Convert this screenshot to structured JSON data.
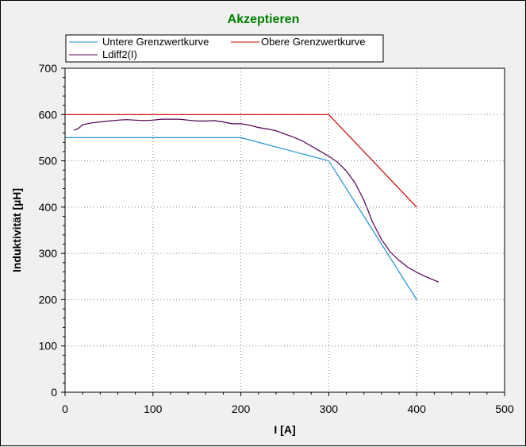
{
  "chart_data": {
    "type": "line",
    "title": "Akzeptieren",
    "title_color": "#008000",
    "xlabel": "I [A]",
    "ylabel": "Induktivität [µH]",
    "xlim": [
      0,
      500
    ],
    "ylim": [
      0,
      700
    ],
    "xticks": [
      0,
      100,
      200,
      300,
      400,
      500
    ],
    "yticks": [
      0,
      100,
      200,
      300,
      400,
      500,
      600,
      700
    ],
    "grid": true,
    "legend_position": "top",
    "series": [
      {
        "name": "Untere Grenzwertkurve",
        "color": "#1e90d8",
        "x": [
          0,
          200,
          300,
          400
        ],
        "y": [
          550,
          550,
          500,
          200
        ]
      },
      {
        "name": "Obere Grenzwertkurve",
        "color": "#c80000",
        "x": [
          0,
          300,
          400
        ],
        "y": [
          600,
          600,
          400
        ]
      },
      {
        "name": "Ldiff2(I)",
        "color": "#500050",
        "x": [
          10,
          15,
          20,
          30,
          40,
          50,
          60,
          70,
          80,
          90,
          100,
          110,
          120,
          130,
          140,
          150,
          160,
          170,
          180,
          190,
          200,
          210,
          220,
          230,
          240,
          250,
          260,
          270,
          280,
          290,
          300,
          310,
          320,
          330,
          340,
          350,
          360,
          370,
          380,
          390,
          400,
          410,
          425
        ],
        "y": [
          566,
          570,
          578,
          582,
          584,
          586,
          588,
          589,
          588,
          587,
          588,
          590,
          590,
          590,
          588,
          586,
          586,
          587,
          584,
          580,
          580,
          577,
          572,
          569,
          565,
          558,
          551,
          543,
          532,
          521,
          510,
          497,
          478,
          452,
          415,
          367,
          330,
          303,
          285,
          270,
          259,
          250,
          238
        ]
      }
    ]
  }
}
